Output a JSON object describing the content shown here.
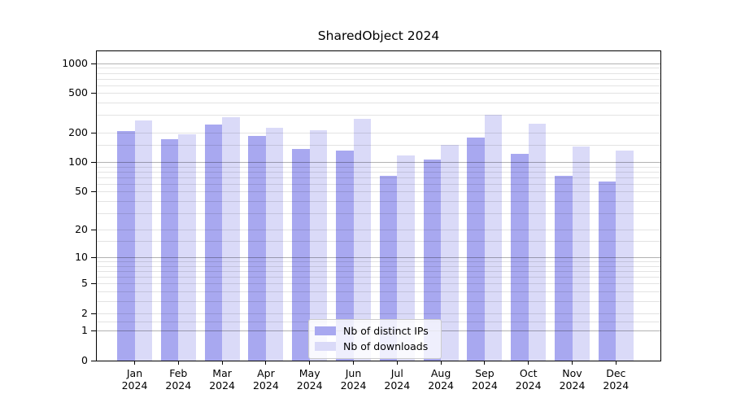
{
  "title": "SharedObject 2024",
  "colors": {
    "background": "#ffffff",
    "axis": "#000000",
    "grid_major": "#adadad",
    "grid_minor": "#e3e3e3",
    "legend_border": "#cccccc",
    "series_distinct_ips": "#a8a8f0",
    "series_downloads": "#dadaf8"
  },
  "chart_data": {
    "type": "bar",
    "title": "SharedObject 2024",
    "categories": [
      "Jan",
      "Feb",
      "Mar",
      "Apr",
      "May",
      "Jun",
      "Jul",
      "Aug",
      "Sep",
      "Oct",
      "Nov",
      "Dec"
    ],
    "x_tick_year": "2024",
    "series": [
      {
        "name": "Nb of distinct IPs",
        "color": "#a8a8f0",
        "values": [
          207,
          170,
          240,
          186,
          135,
          132,
          73,
          107,
          178,
          121,
          72,
          63
        ]
      },
      {
        "name": "Nb of downloads",
        "color": "#dadaf8",
        "values": [
          265,
          193,
          288,
          222,
          210,
          276,
          117,
          150,
          305,
          247,
          143,
          130
        ]
      }
    ],
    "yscale": "log1p",
    "ylim": [
      0,
      1380
    ],
    "y_ticks": [
      0,
      1,
      2,
      5,
      10,
      20,
      50,
      100,
      200,
      500,
      1000
    ],
    "y_major_gridlines": [
      1,
      10,
      100,
      1000
    ],
    "y_minor_gridlines": [
      1.5,
      2,
      3,
      4,
      5,
      6,
      7,
      8,
      9,
      15,
      20,
      30,
      40,
      50,
      60,
      70,
      80,
      90,
      150,
      200,
      300,
      400,
      500,
      600,
      700,
      800,
      900
    ],
    "grid": true,
    "legend_position": "lower center",
    "xlabel": "",
    "ylabel": ""
  }
}
